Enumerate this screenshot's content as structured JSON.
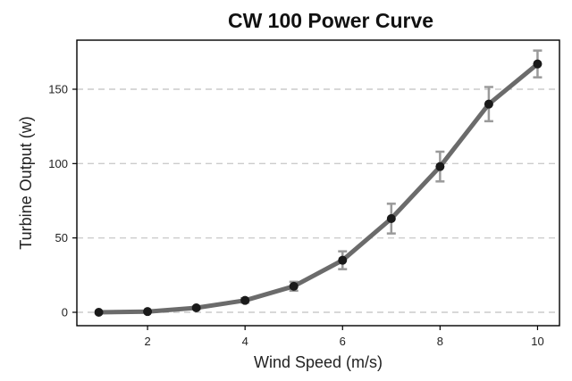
{
  "chart_data": {
    "type": "line",
    "title": "CW 100 Power Curve",
    "xlabel": "Wind Speed (m/s)",
    "ylabel": "Turbine Output (w)",
    "xlim": [
      0.55,
      10.45
    ],
    "ylim": [
      -9,
      183
    ],
    "xticks": [
      2,
      4,
      6,
      8,
      10
    ],
    "yticks": [
      0,
      50,
      100,
      150
    ],
    "grid": "horizontal-dashed",
    "legend": "none",
    "series": [
      {
        "x": [
          1,
          2,
          3,
          4,
          5,
          6,
          7,
          8,
          9,
          10
        ],
        "y": [
          0,
          0.5,
          3,
          8,
          17.5,
          35,
          63,
          98,
          140,
          167
        ],
        "error": [
          0,
          0.5,
          0.8,
          1.5,
          3,
          6,
          10,
          10,
          11.5,
          9
        ]
      }
    ],
    "colors": {
      "line": "#6b6b6b",
      "marker": "#1a1a1a",
      "errorbar": "#9a9a9a",
      "grid": "#cccccc",
      "frame": "#000000"
    }
  }
}
